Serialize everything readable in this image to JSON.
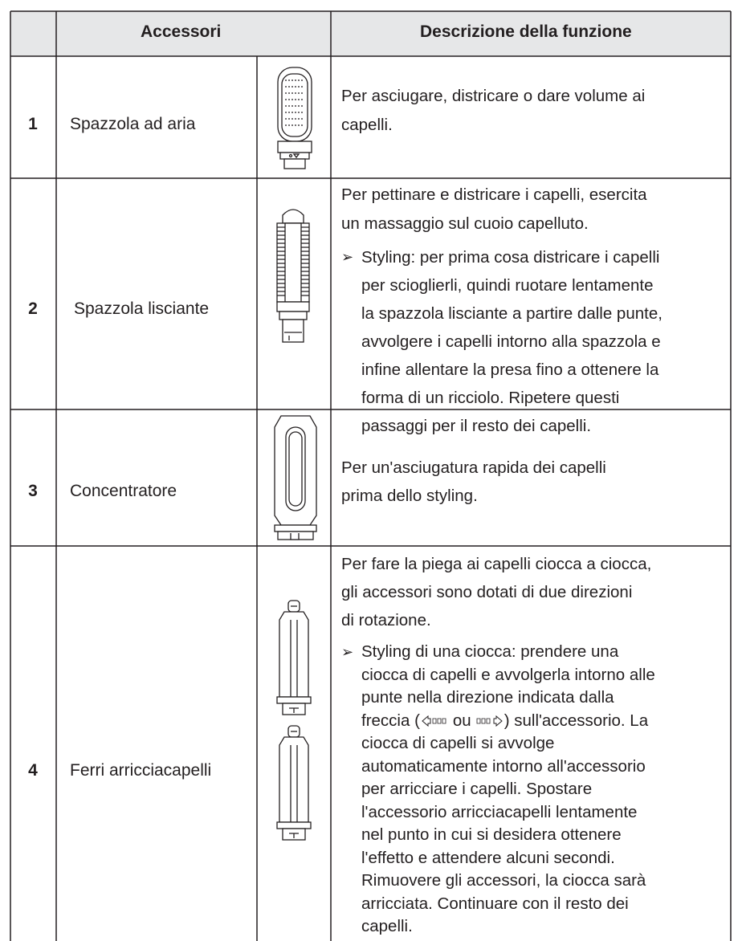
{
  "header": {
    "accessories": "Accessori",
    "description": "Descrizione della funzione"
  },
  "rows": [
    {
      "number": "1",
      "name": "Spazzola ad aria",
      "description": [
        {
          "lines": [
            "Per asciugare, districare o dare volume ai",
            "capelli."
          ]
        }
      ]
    },
    {
      "number": "2",
      "name": "Spazzola lisciante",
      "description": [
        {
          "lines": [
            "Per pettinare e districare i capelli, esercita",
            "un massaggio sul cuoio capelluto."
          ]
        },
        {
          "marker": "➢",
          "lines": [
            "Styling: per prima cosa districare i capelli",
            "per scioglierli, quindi ruotare lentamente",
            "la spazzola lisciante a partire dalle punte,",
            "avvolgere i capelli intorno alla spazzola e",
            "infine allentare la presa fino a ottenere la",
            "forma di un ricciolo. Ripetere questi",
            "passaggi per il resto dei capelli."
          ]
        }
      ]
    },
    {
      "number": "3",
      "name": "Concentratore",
      "description": [
        {
          "lines": [
            "Per un'asciugatura rapida dei capelli",
            "prima dello styling."
          ]
        }
      ]
    },
    {
      "number": "4",
      "name": "Ferri arricciacapelli",
      "description": [
        {
          "lines": [
            "Per fare la piega ai capelli ciocca a ciocca,",
            "gli accessori sono dotati di due direzioni",
            "di rotazione."
          ]
        },
        {
          "marker": "➢",
          "lines": [
            "Styling di una ciocca: prendere una",
            "ciocca di capelli e avvolgerla intorno alle",
            "punte nella direzione indicata dalla",
            {
              "before": "freccia (",
              "middle": "ou",
              "after": ") sull'accessorio. La"
            },
            "ciocca di capelli si avvolge",
            "automaticamente intorno all'accessorio",
            "per arricciare i capelli. Spostare",
            "l'accessorio arricciacapelli lentamente",
            "nel punto in cui si desidera ottenere",
            "l'effetto e attendere alcuni secondi.",
            "Rimuovere gli accessori, la ciocca sarà",
            "arricciata. Continuare con il resto dei",
            "capelli."
          ]
        }
      ]
    }
  ]
}
